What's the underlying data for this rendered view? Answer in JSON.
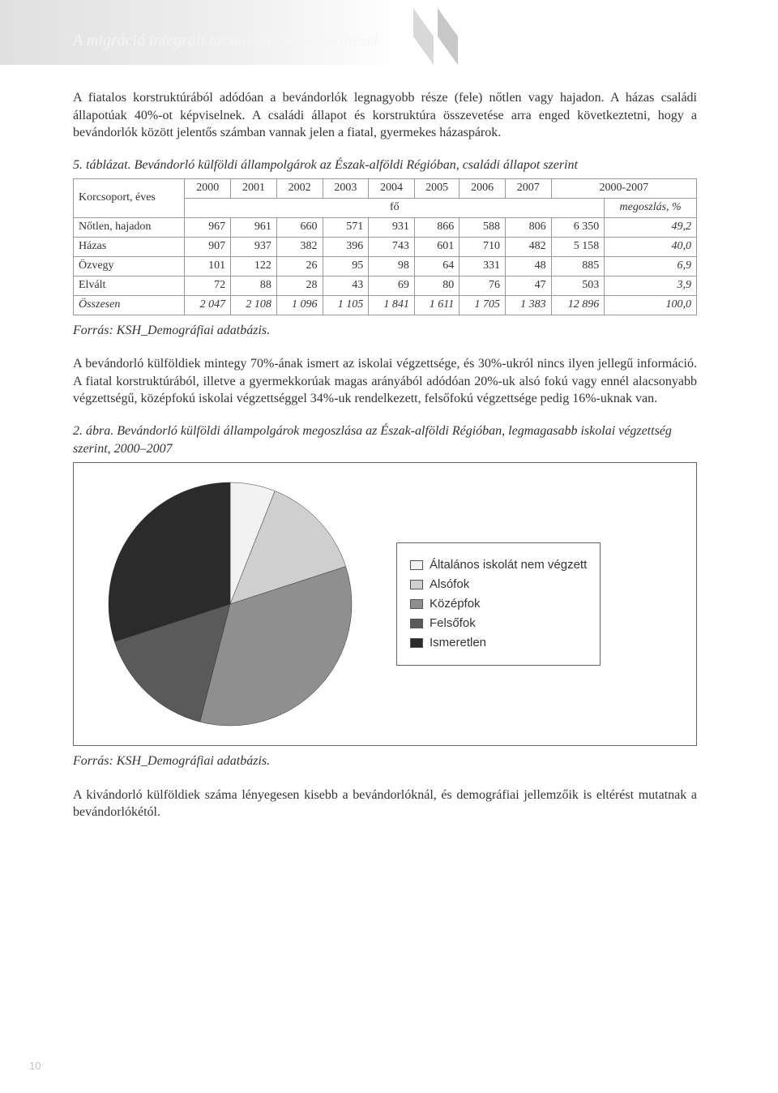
{
  "header": {
    "title": "A migráció integrált társadalmi megközelítései"
  },
  "para1": "A fiatalos korstruktúrából adódóan a bevándorlók legnagyobb része (fele) nőtlen vagy hajadon. A házas családi állapotúak 40%-ot képviselnek. A családi állapot és korstruktúra összevetése arra enged következtetni, hogy a bevándorlók között jelentős számban vannak jelen a fiatal, gyermekes házaspárok.",
  "table": {
    "caption": "5. táblázat. Bevándorló külföldi állampolgárok az Észak-alföldi Régióban, családi állapot szerint",
    "corner_label": "Korcsoport, éves",
    "years": [
      "2000",
      "2001",
      "2002",
      "2003",
      "2004",
      "2005",
      "2006",
      "2007"
    ],
    "range_label": "2000-2007",
    "unit_label": "fő",
    "share_label": "megoszlás, %",
    "rows": [
      {
        "label": "Nőtlen, hajadon",
        "vals": [
          "967",
          "961",
          "660",
          "571",
          "931",
          "866",
          "588",
          "806"
        ],
        "sum": "6 350",
        "share": "49,2",
        "italic": false
      },
      {
        "label": "Házas",
        "vals": [
          "907",
          "937",
          "382",
          "396",
          "743",
          "601",
          "710",
          "482"
        ],
        "sum": "5 158",
        "share": "40,0",
        "italic": false
      },
      {
        "label": "Özvegy",
        "vals": [
          "101",
          "122",
          "26",
          "95",
          "98",
          "64",
          "331",
          "48"
        ],
        "sum": "885",
        "share": "6,9",
        "italic": false
      },
      {
        "label": "Elvált",
        "vals": [
          "72",
          "88",
          "28",
          "43",
          "69",
          "80",
          "76",
          "47"
        ],
        "sum": "503",
        "share": "3,9",
        "italic": false
      },
      {
        "label": "Összesen",
        "vals": [
          "2 047",
          "2 108",
          "1 096",
          "1 105",
          "1 841",
          "1 611",
          "1 705",
          "1 383"
        ],
        "sum": "12 896",
        "share": "100,0",
        "italic": true
      }
    ],
    "source": "Forrás: KSH_Demográfiai adatbázis."
  },
  "para2": "A bevándorló külföldiek mintegy 70%-ának ismert az iskolai végzettsége, és 30%-ukról nincs ilyen jellegű információ. A fiatal korstruktúrából, illetve a gyermekkorúak magas arányából adódóan 20%-uk alsó fokú vagy ennél alacsonyabb végzettségű, középfokú iskolai végzettséggel 34%-uk rendelkezett, felsőfokú végzettsége pedig 16%-uknak van.",
  "chart": {
    "caption": "2. ábra. Bevándorló külföldi állampolgárok megoszlása az Észak-alföldi Régióban, legmagasabb iskolai végzettség szerint, 2000–2007",
    "type": "pie",
    "background_color": "#ffffff",
    "border_color": "#666666",
    "slices": [
      {
        "label": "Általános iskolát nem végzett",
        "value": 6,
        "color": "#f2f2f2"
      },
      {
        "label": "Alsófok",
        "value": 14,
        "color": "#cfcfcf"
      },
      {
        "label": "Középfok",
        "value": 34,
        "color": "#8f8f8f"
      },
      {
        "label": "Felsőfok",
        "value": 16,
        "color": "#5a5a5a"
      },
      {
        "label": "Ismeretlen",
        "value": 30,
        "color": "#2b2b2b"
      }
    ],
    "legend_font": "Arial",
    "legend_fontsize": 15,
    "pie_radius": 150,
    "source": "Forrás: KSH_Demográfiai adatbázis."
  },
  "para3": "A kivándorló külföldiek száma lényegesen kisebb a bevándorlóknál, és demográfiai jellemzőik is eltérést mutatnak a bevándorlókétól.",
  "pagefoot": "10"
}
